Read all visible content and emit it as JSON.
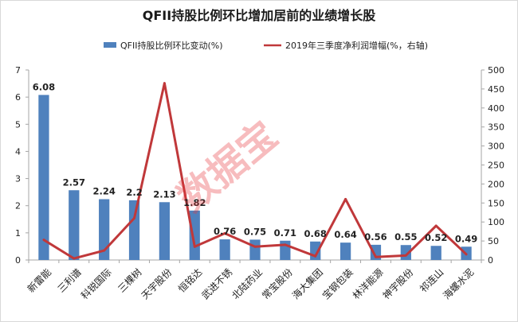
{
  "chart_data": {
    "type": "bar",
    "title": "QFII持股比例环比增加居前的业绩增长股",
    "categories": [
      "新雷能",
      "三利谱",
      "科锐国际",
      "三棵树",
      "天宇股份",
      "恒铭达",
      "武进不锈",
      "北陆药业",
      "常宝股份",
      "海大集团",
      "宝钢包装",
      "林洋能源",
      "神宇股份",
      "祁连山",
      "海螺水泥"
    ],
    "series": [
      {
        "name": "QFII持股比例环比变动(%)",
        "type": "bar",
        "axis": "left",
        "color": "#4f81bd",
        "values": [
          6.08,
          2.57,
          2.24,
          2.2,
          2.13,
          1.82,
          0.76,
          0.75,
          0.71,
          0.68,
          0.64,
          0.56,
          0.55,
          0.52,
          0.49
        ],
        "labels": [
          "6.08",
          "2.57",
          "2.24",
          "2.2",
          "2.13",
          "1.82",
          "0.76",
          "0.75",
          "0.71",
          "0.68",
          "0.64",
          "0.56",
          "0.55",
          "0.52",
          "0.49"
        ]
      },
      {
        "name": "2019年三季度净利润增幅(%，右轴)",
        "type": "line",
        "axis": "right",
        "color": "#c0383a",
        "values": [
          53,
          4,
          25,
          110,
          465,
          35,
          70,
          35,
          40,
          10,
          160,
          8,
          12,
          90,
          15
        ]
      }
    ],
    "y_left": {
      "min": 0,
      "max": 7,
      "ticks": [
        "0",
        "1",
        "2",
        "3",
        "4",
        "5",
        "6",
        "7"
      ]
    },
    "y_right": {
      "min": 0,
      "max": 500,
      "ticks": [
        "0",
        "50",
        "100",
        "150",
        "200",
        "250",
        "300",
        "350",
        "400",
        "450",
        "500"
      ]
    },
    "grid": false,
    "legend_position": "top"
  },
  "watermark": "数据宝"
}
